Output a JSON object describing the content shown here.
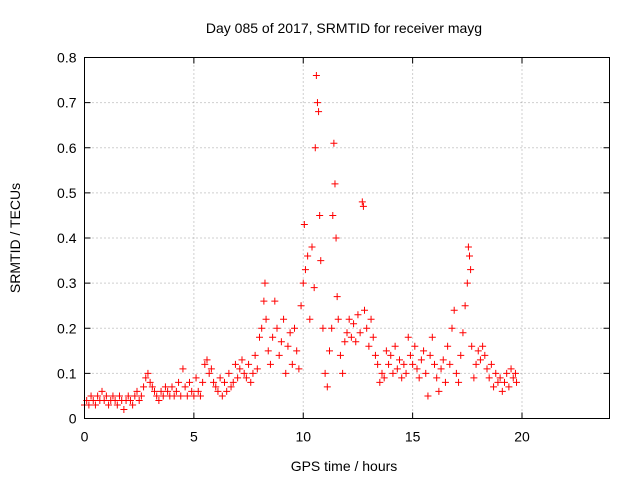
{
  "chart_data": {
    "type": "scatter",
    "title": "Day 085 of 2017, SRMTID for receiver mayg",
    "xlabel": "GPS time / hours",
    "ylabel": "SRMTID / TECUs",
    "xlim": [
      0,
      24
    ],
    "ylim": [
      0,
      0.8
    ],
    "x_ticks": [
      "0",
      "5",
      "10",
      "15",
      "20"
    ],
    "y_ticks": [
      "0",
      "0.1",
      "0.2",
      "0.3",
      "0.4",
      "0.5",
      "0.6",
      "0.7",
      "0.8"
    ],
    "grid": true,
    "marker": "+",
    "series": [
      {
        "name": "SRMTID",
        "color": "#ff0000",
        "points": [
          [
            0.0,
            0.03
          ],
          [
            0.1,
            0.04
          ],
          [
            0.2,
            0.03
          ],
          [
            0.3,
            0.05
          ],
          [
            0.4,
            0.04
          ],
          [
            0.5,
            0.03
          ],
          [
            0.6,
            0.05
          ],
          [
            0.7,
            0.04
          ],
          [
            0.8,
            0.06
          ],
          [
            0.9,
            0.04
          ],
          [
            1.0,
            0.05
          ],
          [
            1.1,
            0.03
          ],
          [
            1.2,
            0.04
          ],
          [
            1.3,
            0.05
          ],
          [
            1.4,
            0.04
          ],
          [
            1.5,
            0.03
          ],
          [
            1.6,
            0.05
          ],
          [
            1.7,
            0.04
          ],
          [
            1.8,
            0.02
          ],
          [
            1.9,
            0.04
          ],
          [
            2.0,
            0.05
          ],
          [
            2.1,
            0.04
          ],
          [
            2.2,
            0.03
          ],
          [
            2.3,
            0.05
          ],
          [
            2.4,
            0.06
          ],
          [
            2.5,
            0.04
          ],
          [
            2.6,
            0.05
          ],
          [
            2.7,
            0.07
          ],
          [
            2.8,
            0.09
          ],
          [
            2.9,
            0.1
          ],
          [
            3.0,
            0.08
          ],
          [
            3.1,
            0.07
          ],
          [
            3.2,
            0.06
          ],
          [
            3.3,
            0.05
          ],
          [
            3.4,
            0.04
          ],
          [
            3.5,
            0.06
          ],
          [
            3.6,
            0.05
          ],
          [
            3.7,
            0.07
          ],
          [
            3.8,
            0.06
          ],
          [
            3.9,
            0.05
          ],
          [
            4.0,
            0.07
          ],
          [
            4.1,
            0.05
          ],
          [
            4.2,
            0.06
          ],
          [
            4.3,
            0.08
          ],
          [
            4.4,
            0.05
          ],
          [
            4.5,
            0.11
          ],
          [
            4.6,
            0.07
          ],
          [
            4.7,
            0.05
          ],
          [
            4.8,
            0.08
          ],
          [
            4.9,
            0.06
          ],
          [
            5.0,
            0.05
          ],
          [
            5.1,
            0.09
          ],
          [
            5.2,
            0.06
          ],
          [
            5.3,
            0.05
          ],
          [
            5.4,
            0.08
          ],
          [
            5.5,
            0.12
          ],
          [
            5.6,
            0.13
          ],
          [
            5.7,
            0.1
          ],
          [
            5.8,
            0.11
          ],
          [
            5.9,
            0.08
          ],
          [
            6.0,
            0.07
          ],
          [
            6.1,
            0.06
          ],
          [
            6.2,
            0.09
          ],
          [
            6.3,
            0.05
          ],
          [
            6.4,
            0.08
          ],
          [
            6.5,
            0.06
          ],
          [
            6.6,
            0.1
          ],
          [
            6.7,
            0.07
          ],
          [
            6.8,
            0.08
          ],
          [
            6.9,
            0.12
          ],
          [
            7.0,
            0.09
          ],
          [
            7.1,
            0.11
          ],
          [
            7.2,
            0.13
          ],
          [
            7.3,
            0.1
          ],
          [
            7.4,
            0.09
          ],
          [
            7.5,
            0.12
          ],
          [
            7.6,
            0.08
          ],
          [
            7.7,
            0.1
          ],
          [
            7.8,
            0.14
          ],
          [
            7.9,
            0.11
          ],
          [
            8.0,
            0.18
          ],
          [
            8.1,
            0.2
          ],
          [
            8.2,
            0.26
          ],
          [
            8.25,
            0.3
          ],
          [
            8.3,
            0.22
          ],
          [
            8.4,
            0.15
          ],
          [
            8.5,
            0.12
          ],
          [
            8.6,
            0.18
          ],
          [
            8.7,
            0.26
          ],
          [
            8.8,
            0.2
          ],
          [
            8.9,
            0.14
          ],
          [
            9.0,
            0.17
          ],
          [
            9.1,
            0.22
          ],
          [
            9.2,
            0.1
          ],
          [
            9.3,
            0.16
          ],
          [
            9.4,
            0.19
          ],
          [
            9.5,
            0.12
          ],
          [
            9.6,
            0.2
          ],
          [
            9.7,
            0.15
          ],
          [
            9.8,
            0.11
          ],
          [
            9.9,
            0.25
          ],
          [
            10.0,
            0.3
          ],
          [
            10.05,
            0.43
          ],
          [
            10.1,
            0.33
          ],
          [
            10.2,
            0.36
          ],
          [
            10.3,
            0.22
          ],
          [
            10.4,
            0.38
          ],
          [
            10.5,
            0.29
          ],
          [
            10.55,
            0.6
          ],
          [
            10.6,
            0.76
          ],
          [
            10.65,
            0.7
          ],
          [
            10.7,
            0.68
          ],
          [
            10.75,
            0.45
          ],
          [
            10.8,
            0.35
          ],
          [
            10.9,
            0.2
          ],
          [
            11.0,
            0.1
          ],
          [
            11.1,
            0.07
          ],
          [
            11.2,
            0.15
          ],
          [
            11.3,
            0.2
          ],
          [
            11.35,
            0.45
          ],
          [
            11.4,
            0.61
          ],
          [
            11.45,
            0.52
          ],
          [
            11.5,
            0.4
          ],
          [
            11.55,
            0.27
          ],
          [
            11.6,
            0.22
          ],
          [
            11.7,
            0.14
          ],
          [
            11.8,
            0.1
          ],
          [
            11.9,
            0.17
          ],
          [
            12.0,
            0.19
          ],
          [
            12.1,
            0.22
          ],
          [
            12.2,
            0.18
          ],
          [
            12.3,
            0.21
          ],
          [
            12.4,
            0.17
          ],
          [
            12.5,
            0.23
          ],
          [
            12.6,
            0.19
          ],
          [
            12.7,
            0.48
          ],
          [
            12.75,
            0.47
          ],
          [
            12.8,
            0.24
          ],
          [
            12.9,
            0.2
          ],
          [
            13.0,
            0.16
          ],
          [
            13.1,
            0.22
          ],
          [
            13.2,
            0.18
          ],
          [
            13.3,
            0.14
          ],
          [
            13.4,
            0.12
          ],
          [
            13.5,
            0.08
          ],
          [
            13.6,
            0.1
          ],
          [
            13.7,
            0.09
          ],
          [
            13.8,
            0.15
          ],
          [
            13.9,
            0.12
          ],
          [
            14.0,
            0.14
          ],
          [
            14.1,
            0.1
          ],
          [
            14.2,
            0.16
          ],
          [
            14.3,
            0.11
          ],
          [
            14.4,
            0.13
          ],
          [
            14.5,
            0.09
          ],
          [
            14.6,
            0.12
          ],
          [
            14.7,
            0.1
          ],
          [
            14.8,
            0.18
          ],
          [
            14.9,
            0.14
          ],
          [
            15.0,
            0.12
          ],
          [
            15.1,
            0.16
          ],
          [
            15.2,
            0.11
          ],
          [
            15.3,
            0.09
          ],
          [
            15.4,
            0.13
          ],
          [
            15.5,
            0.15
          ],
          [
            15.6,
            0.1
          ],
          [
            15.7,
            0.05
          ],
          [
            15.8,
            0.14
          ],
          [
            15.9,
            0.18
          ],
          [
            16.0,
            0.12
          ],
          [
            16.1,
            0.09
          ],
          [
            16.2,
            0.06
          ],
          [
            16.3,
            0.11
          ],
          [
            16.4,
            0.13
          ],
          [
            16.5,
            0.08
          ],
          [
            16.6,
            0.16
          ],
          [
            16.7,
            0.12
          ],
          [
            16.8,
            0.2
          ],
          [
            16.9,
            0.24
          ],
          [
            17.0,
            0.1
          ],
          [
            17.1,
            0.08
          ],
          [
            17.2,
            0.14
          ],
          [
            17.3,
            0.19
          ],
          [
            17.4,
            0.25
          ],
          [
            17.5,
            0.3
          ],
          [
            17.55,
            0.38
          ],
          [
            17.6,
            0.36
          ],
          [
            17.65,
            0.33
          ],
          [
            17.7,
            0.16
          ],
          [
            17.8,
            0.09
          ],
          [
            17.9,
            0.12
          ],
          [
            18.0,
            0.15
          ],
          [
            18.1,
            0.13
          ],
          [
            18.2,
            0.16
          ],
          [
            18.3,
            0.14
          ],
          [
            18.4,
            0.11
          ],
          [
            18.5,
            0.09
          ],
          [
            18.6,
            0.12
          ],
          [
            18.7,
            0.07
          ],
          [
            18.8,
            0.1
          ],
          [
            18.9,
            0.08
          ],
          [
            19.0,
            0.09
          ],
          [
            19.1,
            0.06
          ],
          [
            19.2,
            0.08
          ],
          [
            19.3,
            0.1
          ],
          [
            19.4,
            0.07
          ],
          [
            19.5,
            0.11
          ],
          [
            19.6,
            0.09
          ],
          [
            19.7,
            0.1
          ],
          [
            19.75,
            0.08
          ]
        ]
      }
    ]
  }
}
